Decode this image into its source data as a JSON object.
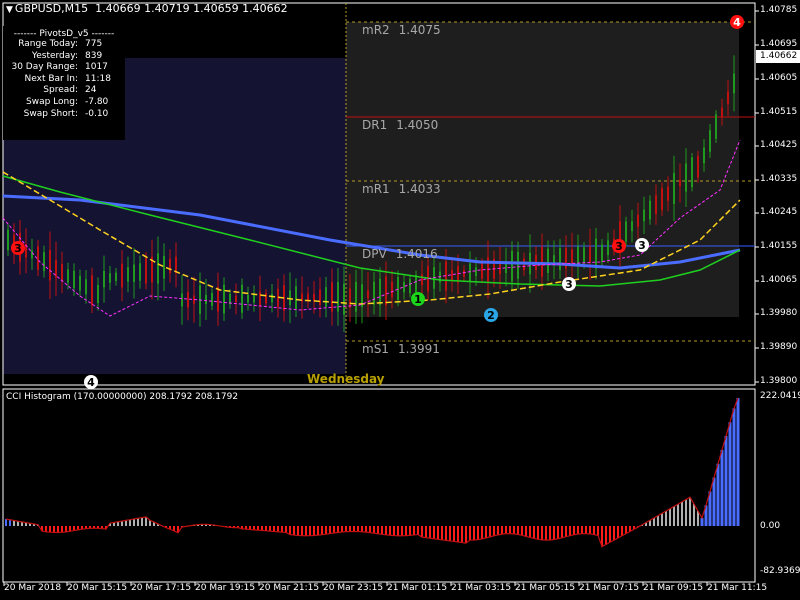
{
  "window": {
    "symbol": "GBPUSD,M15",
    "ohlc": "1.40669 1.40719 1.40659 1.40662"
  },
  "info_panel": {
    "header": "-------  PivotsD_v5  -------",
    "rows": [
      {
        "label": "Range  Today:",
        "value": "775"
      },
      {
        "label": "Yesterday:",
        "value": "839"
      },
      {
        "label": "30 Day Range:",
        "value": "1017"
      },
      {
        "label": "Next Bar In:",
        "value": "11:18"
      },
      {
        "label": "Spread:",
        "value": "24"
      },
      {
        "label": "Swap  Long:",
        "value": "-7.80"
      },
      {
        "label": "Swap  Short:",
        "value": "-0.10"
      }
    ]
  },
  "pivots": [
    {
      "name": "mR2",
      "value": "1.4075",
      "color": "#b59a2a",
      "style": "dashed"
    },
    {
      "name": "DR1",
      "value": "1.4050",
      "color": "#c01010",
      "style": "solid"
    },
    {
      "name": "mR1",
      "value": "1.4033",
      "color": "#b59a2a",
      "style": "dashed"
    },
    {
      "name": "DPV",
      "value": "1.4016",
      "color": "#3a5cff",
      "style": "solid"
    },
    {
      "name": "mS1",
      "value": "1.3991",
      "color": "#b59a2a",
      "style": "dashed"
    }
  ],
  "price_axis": {
    "labels": [
      "1.40785",
      "1.40695",
      "1.40605",
      "1.40515",
      "1.40425",
      "1.40335",
      "1.40245",
      "1.40155",
      "1.40065",
      "1.39980",
      "1.39890",
      "1.39800"
    ],
    "current_price": "1.40662"
  },
  "day_label": "Wednesday",
  "markers": [
    {
      "label": "3",
      "color": "#ff1010",
      "text_color": "#000"
    },
    {
      "label": "4",
      "color": "#ffffff",
      "text_color": "#000"
    },
    {
      "label": "1",
      "color": "#1bd61b",
      "text_color": "#000"
    },
    {
      "label": "2",
      "color": "#2aa6e6",
      "text_color": "#000"
    },
    {
      "label": "3",
      "color": "#ffffff",
      "text_color": "#000"
    },
    {
      "label": "3",
      "color": "#ff1010",
      "text_color": "#000"
    },
    {
      "label": "3",
      "color": "#ffffff",
      "text_color": "#000"
    },
    {
      "label": "4",
      "color": "#ff1010",
      "text_color": "#fff"
    }
  ],
  "indicator": {
    "title": "CCI Histogram (170.00000000) 208.1792 208.1792",
    "axis_labels": [
      "222.0419",
      "0.00",
      "-82.9369"
    ]
  },
  "time_axis": [
    "20 Mar 2018",
    "20 Mar 15:15",
    "20 Mar 17:15",
    "20 Mar 19:15",
    "20 Mar 21:15",
    "20 Mar 23:15",
    "21 Mar 01:15",
    "21 Mar 03:15",
    "21 Mar 05:15",
    "21 Mar 07:15",
    "21 Mar 09:15",
    "21 Mar 11:15"
  ],
  "colors": {
    "background": "#000000",
    "session_bg": "#141432",
    "today_bg": "#1e1e1e",
    "bull_candle": "#1f9a1f",
    "bear_candle": "#c01010",
    "ma_blue": "#4a6cff",
    "ma_green": "#1fd01f",
    "ma_yellow": "#ffd21f",
    "ma_magenta": "#ff30ff",
    "cci_pos": "#b0b0b0",
    "cci_neg": "#ff1a1a",
    "cci_strong": "#4a6cff",
    "cci_line": "#c01010"
  }
}
